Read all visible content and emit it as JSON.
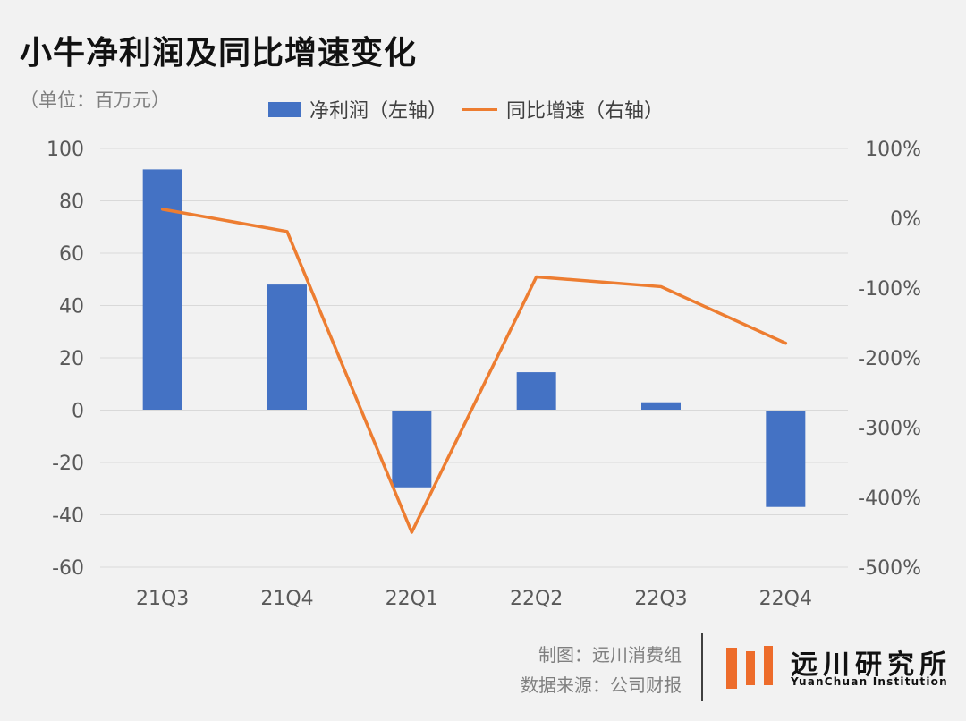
{
  "title": "小牛净利润及同比增速变化",
  "unit": "（单位：百万元）",
  "legend": {
    "bar": "净利润（左轴）",
    "line": "同比增速（右轴）"
  },
  "footer": {
    "maker": "制图：远川消费组",
    "source": "数据来源：公司财报"
  },
  "logo": {
    "cn": "远川研究所",
    "en": "YuanChuan Institution",
    "color": "#ed6c2b"
  },
  "chart_data": {
    "type": "bar",
    "categories": [
      "21Q3",
      "21Q4",
      "22Q1",
      "22Q2",
      "22Q3",
      "22Q4"
    ],
    "series": [
      {
        "name": "净利润（左轴）",
        "type": "bar",
        "axis": "left",
        "color": "#4472c4",
        "values": [
          92,
          48,
          -29.5,
          14.5,
          3,
          -37
        ]
      },
      {
        "name": "同比增速（右轴）",
        "type": "line",
        "axis": "right",
        "color": "#ed7d31",
        "values": [
          13,
          -19,
          -450,
          -84,
          -98,
          -179
        ]
      }
    ],
    "left_axis": {
      "ylim": [
        -60,
        100
      ],
      "ticks": [
        "100",
        "80",
        "60",
        "40",
        "20",
        "0",
        "-20",
        "-40",
        "-60"
      ]
    },
    "right_axis": {
      "ylim": [
        -500,
        100
      ],
      "ticks": [
        "100%",
        "0%",
        "-100%",
        "-200%",
        "-300%",
        "-400%",
        "-500%"
      ]
    },
    "grid": true,
    "legend_position": "top"
  }
}
